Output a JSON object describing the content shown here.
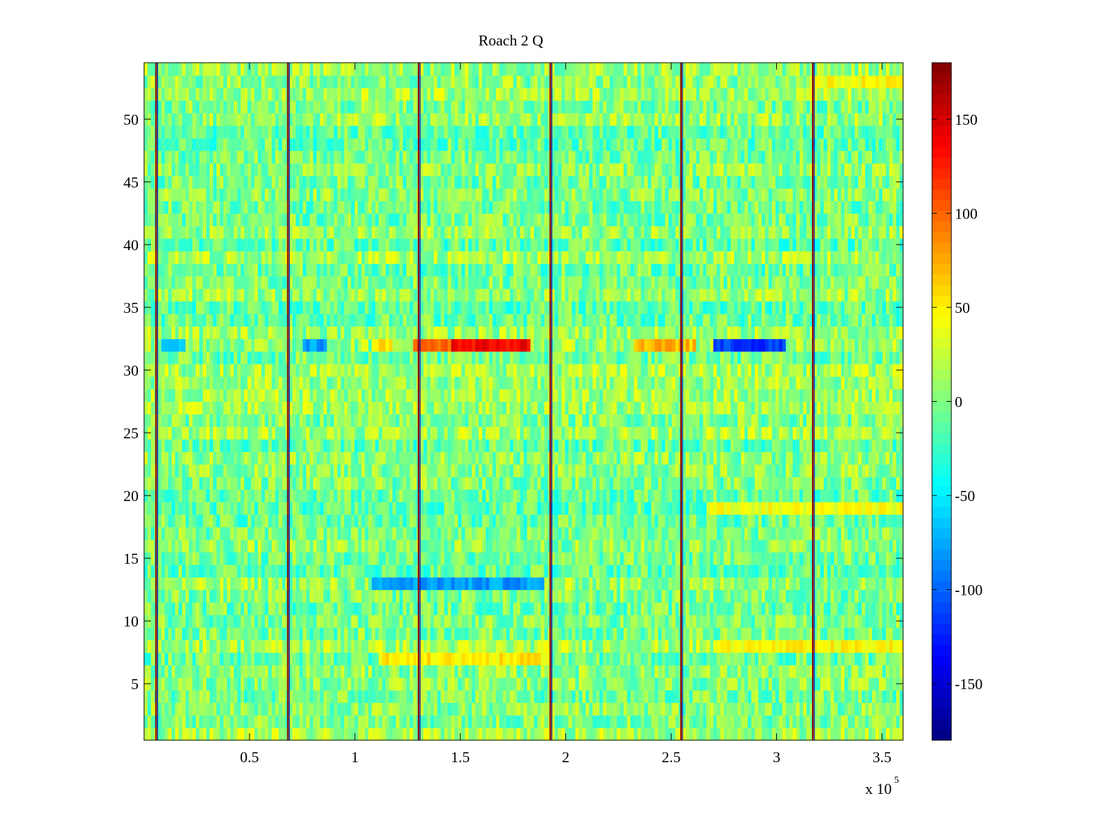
{
  "chart_data": {
    "type": "heatmap",
    "title": "Roach 2 Q",
    "xlabel": "",
    "ylabel": "",
    "x_multiplier_label": "x 10",
    "x_multiplier_exponent": "5",
    "xlim": [
      0,
      360000
    ],
    "ylim": [
      0.5,
      54.5
    ],
    "x_ticks": [
      {
        "value": 50000,
        "label": "0.5"
      },
      {
        "value": 100000,
        "label": "1"
      },
      {
        "value": 150000,
        "label": "1.5"
      },
      {
        "value": 200000,
        "label": "2"
      },
      {
        "value": 250000,
        "label": "2.5"
      },
      {
        "value": 300000,
        "label": "3"
      },
      {
        "value": 350000,
        "label": "3.5"
      }
    ],
    "y_ticks": [
      {
        "value": 5,
        "label": "5"
      },
      {
        "value": 10,
        "label": "10"
      },
      {
        "value": 15,
        "label": "15"
      },
      {
        "value": 20,
        "label": "20"
      },
      {
        "value": 25,
        "label": "25"
      },
      {
        "value": 30,
        "label": "30"
      },
      {
        "value": 35,
        "label": "35"
      },
      {
        "value": 40,
        "label": "40"
      },
      {
        "value": 45,
        "label": "45"
      },
      {
        "value": 50,
        "label": "50"
      }
    ],
    "colorbar": {
      "colormap": "jet",
      "clim": [
        -180,
        180
      ],
      "ticks": [
        {
          "value": 150,
          "label": "150"
        },
        {
          "value": 100,
          "label": "100"
        },
        {
          "value": 50,
          "label": "50"
        },
        {
          "value": 0,
          "label": "0"
        },
        {
          "value": -50,
          "label": "-50"
        },
        {
          "value": -100,
          "label": "-100"
        },
        {
          "value": -150,
          "label": "-150"
        }
      ]
    },
    "rows": 54,
    "background_value_range": [
      -40,
      40
    ],
    "phase_jump_columns": [
      6000,
      68500,
      130500,
      193000,
      255000,
      317500
    ],
    "features": [
      {
        "row": 32,
        "x_start": 145000,
        "x_end": 183000,
        "value": 135
      },
      {
        "row": 32,
        "x_start": 128000,
        "x_end": 145000,
        "value": 95
      },
      {
        "row": 32,
        "x_start": 108000,
        "x_end": 118000,
        "value": 55
      },
      {
        "row": 32,
        "x_start": 232000,
        "x_end": 262000,
        "value": 70
      },
      {
        "row": 32,
        "x_start": 270000,
        "x_end": 305000,
        "value": -115
      },
      {
        "row": 32,
        "x_start": 76000,
        "x_end": 86000,
        "value": -80
      },
      {
        "row": 32,
        "x_start": 8000,
        "x_end": 20000,
        "value": -60
      },
      {
        "row": 13,
        "x_start": 108000,
        "x_end": 190000,
        "value": -80
      },
      {
        "row": 7,
        "x_start": 112000,
        "x_end": 193000,
        "value": 50
      },
      {
        "row": 19,
        "x_start": 267000,
        "x_end": 360000,
        "value": 40
      },
      {
        "row": 8,
        "x_start": 270000,
        "x_end": 360000,
        "value": 45
      },
      {
        "row": 53,
        "x_start": 318000,
        "x_end": 360000,
        "value": 45
      }
    ]
  }
}
